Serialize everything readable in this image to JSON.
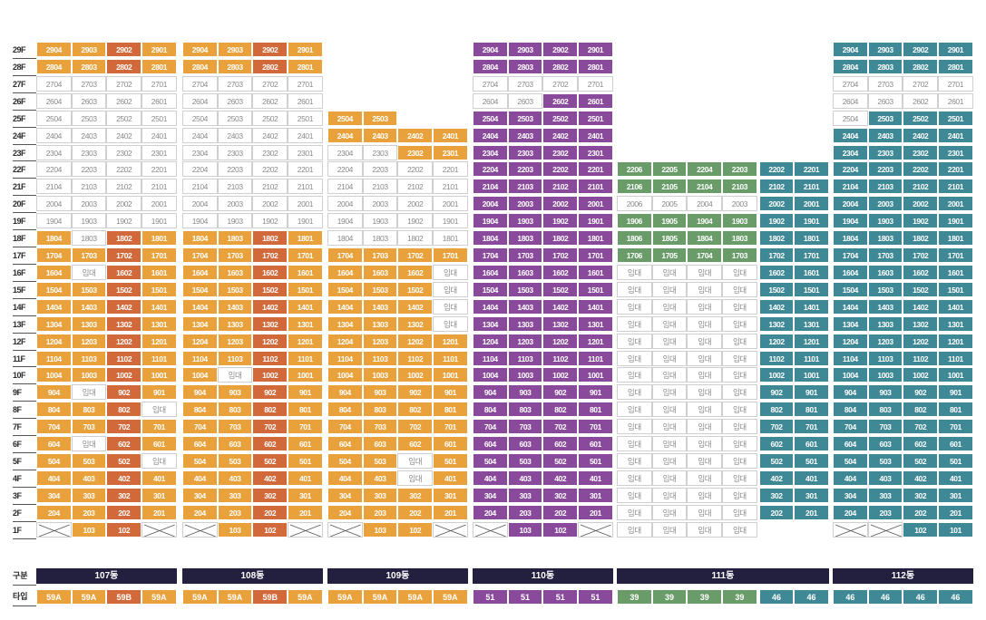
{
  "colors": {
    "107": "#e9a23b",
    "107B": "#d2693a",
    "108": "#e9a23b",
    "108B": "#d2693a",
    "109": "#e9a23b",
    "110": "#8a4a9c",
    "111": "#6a9c6a",
    "111B": "#3f8896",
    "112": "#3f8896",
    "header": "#231f3f"
  },
  "labels": {
    "gubun": "구분",
    "type": "타입",
    "rental": "임대"
  },
  "chart_data": {
    "type": "table",
    "floors": [
      "29F",
      "28F",
      "27F",
      "26F",
      "25F",
      "24F",
      "23F",
      "22F",
      "21F",
      "20F",
      "19F",
      "18F",
      "17F",
      "16F",
      "15F",
      "14F",
      "13F",
      "12F",
      "11F",
      "10F",
      "9F",
      "8F",
      "7F",
      "6F",
      "5F",
      "4F",
      "3F",
      "2F",
      "1F"
    ],
    "buildings": [
      {
        "name": "107동",
        "types": [
          "59A",
          "59A",
          "59B",
          "59A"
        ],
        "units": [
          "2904 2903 2902 2901",
          "2804 2803 2802 2801",
          "2704e 2703e 2702e 2701e",
          "2604e 2603e 2602e 2601e",
          "2504e 2503e 2502e 2501e",
          "2404e 2403e 2402e 2401e",
          "2304e 2303e 2302e 2301e",
          "2204e 2203e 2202e 2201e",
          "2104e 2103e 2102e 2101e",
          "2004e 2003e 2002e 2001e",
          "1904e 1903e 1902e 1901e",
          "1804 1803e 1802 1801",
          "1704 1703 1702 1701",
          "1604 임대e 1602 1601",
          "1504 1503 1502 1501",
          "1404 1403 1402 1401",
          "1304 1303 1302 1301",
          "1204 1203 1202 1201",
          "1104 1103 1102 1101",
          "1004 1003 1002 1001",
          "904 임대e 902 901",
          "804 803 802 임대e",
          "704 703 702 701",
          "604 임대e 602 601",
          "504 503 502 임대e",
          "404 403 402 401",
          "304 303 302 301",
          "204 203 202 201",
          "X 103 102 X"
        ]
      },
      {
        "name": "108동",
        "types": [
          "59A",
          "59A",
          "59B",
          "59A"
        ],
        "units": [
          "2904 2903 2902 2901",
          "2804 2803 2802 2801",
          "2704e 2703e 2702e 2701e",
          "2604e 2603e 2602e 2601e",
          "2504e 2503e 2502e 2501e",
          "2404e 2403e 2402e 2401e",
          "2304e 2303e 2302e 2301e",
          "2204e 2203e 2202e 2201e",
          "2104e 2103e 2102e 2101e",
          "2004e 2003e 2002e 2001e",
          "1904e 1903e 1902e 1901e",
          "1804 1803 1802 1801",
          "1704 1703 1702 1701",
          "1604 1603 1602 1601",
          "1504 1503 1502 1501",
          "1404 1403 1402 1401",
          "1304 1303 1302 1301",
          "1204 1203 1202 1201",
          "1104 1103 1102 1101",
          "1004 임대e 1002 1001",
          "904 903 902 901",
          "804 803 802 801",
          "704 703 702 701",
          "604 603 602 601",
          "504 503 502 501",
          "404 403 402 401",
          "304 303 302 301",
          "204 203 202 201",
          "X 103 102 X"
        ]
      },
      {
        "name": "109동",
        "types": [
          "59A",
          "59A",
          "59A",
          "59A"
        ],
        "units": [
          "- - - -",
          "- - - -",
          "- - - -",
          "- - - -",
          "2504 2503 - -",
          "2404 2403 2402 2401",
          "2304e 2303e 2302 2301",
          "2204e 2203e 2202e 2201e",
          "2104e 2103e 2102e 2101e",
          "2004e 2003e 2002e 2001e",
          "1904e 1903e 1902e 1901e",
          "1804e 1803e 1802e 1801e",
          "1704 1703 1702 1701",
          "1604 1603 1602 임대e",
          "1504 1503 1502 임대e",
          "1404 1403 1402 임대e",
          "1304 1303 1302 임대e",
          "1204 1203 1202 1201",
          "1104 1103 1102 1101",
          "1004 1003 1002 1001",
          "904 903 902 901",
          "804 803 802 801",
          "704 703 702 701",
          "604 603 602 601",
          "504 503 임대e 501",
          "404 403 임대e 401",
          "304 303 302 301",
          "204 203 202 201",
          "X 103 102 X"
        ]
      },
      {
        "name": "110동",
        "types": [
          "51",
          "51",
          "51",
          "51"
        ],
        "units": [
          "2904 2903 2902 2901",
          "2804 2803 2802 2801",
          "2704e 2703e 2702e 2701e",
          "2604e 2603e 2602 2601",
          "2504 2503 2502 2501",
          "2404 2403 2402 2401",
          "2304 2303 2302 2301",
          "2204 2203 2202 2201",
          "2104 2103 2102 2101",
          "2004 2003 2002 2001",
          "1904 1903 1902 1901",
          "1804 1803 1802 1801",
          "1704 1703 1702 1701",
          "1604 1603 1602 1601",
          "1504 1503 1502 1501",
          "1404 1403 1402 1401",
          "1304 1303 1302 1301",
          "1204 1203 1202 1201",
          "1104 1103 1102 1101",
          "1004 1003 1002 1001",
          "904 903 902 901",
          "804 803 802 801",
          "704 703 702 701",
          "604 603 602 601",
          "504 503 502 501",
          "404 403 402 401",
          "304 303 302 301",
          "204 203 202 201",
          "X 103 102 X"
        ]
      },
      {
        "name": "111동",
        "types": [
          "39",
          "39",
          "39",
          "39",
          "46",
          "46"
        ],
        "units": [
          "- - - - - -",
          "- - - - - -",
          "- - - - - -",
          "- - - - - -",
          "- - - - - -",
          "- - - - - -",
          "- - - - - -",
          "2206 2205 2204 2203 2202 2201",
          "2106 2105 2104 2103 2102 2101",
          "2006e 2005e 2004e 2003e 2002 2001",
          "1906 1905 1904 1903 1902 1901",
          "1806 1805 1804 1803 1802 1801",
          "1706 1705 1704 1703 1702 1701",
          "임대e 임대e 임대e 임대e 1602 1601",
          "임대e 임대e 임대e 임대e 1502 1501",
          "임대e 임대e 임대e 임대e 1402 1401",
          "임대e 임대e 임대e 임대e 1302 1301",
          "임대e 임대e 임대e 임대e 1202 1201",
          "임대e 임대e 임대e 임대e 1102 1101",
          "임대e 임대e 임대e 임대e 1002 1001",
          "임대e 임대e 임대e 임대e 902 901",
          "임대e 임대e 임대e 임대e 802 801",
          "임대e 임대e 임대e 임대e 702 701",
          "임대e 임대e 임대e 임대e 602 601",
          "임대e 임대e 임대e 임대e 502 501",
          "임대e 임대e 임대e 임대e 402 401",
          "임대e 임대e 임대e 임대e 302 301",
          "임대e 임대e 임대e 임대e 202 201",
          "임대e 임대e 임대e 임대e - -"
        ]
      },
      {
        "name": "112동",
        "types": [
          "46",
          "46",
          "46",
          "46"
        ],
        "units": [
          "2904 2903 2902 2901",
          "2804 2803 2802 2801",
          "2704e 2703e 2702e 2701e",
          "2604e 2603e 2602e 2601e",
          "2504e 2503 2502 2501",
          "2404 2403 2402 2401",
          "2304 2303 2302 2301",
          "2204 2203 2202 2201",
          "2104 2103 2102 2101",
          "2004 2003 2002 2001",
          "1904 1903 1902 1901",
          "1804 1803 1802 1801",
          "1704 1703 1702 1701",
          "1604 1603 1602 1601",
          "1504 1503 1502 1501",
          "1404 1403 1402 1401",
          "1304 1303 1302 1301",
          "1204 1203 1202 1201",
          "1104 1103 1102 1101",
          "1004 1003 1002 1001",
          "904 903 902 901",
          "804 803 802 801",
          "704 703 702 701",
          "604 603 602 601",
          "504 503 502 501",
          "404 403 402 401",
          "304 303 302 301",
          "204 203 202 201",
          "X X 102 101"
        ]
      }
    ]
  }
}
